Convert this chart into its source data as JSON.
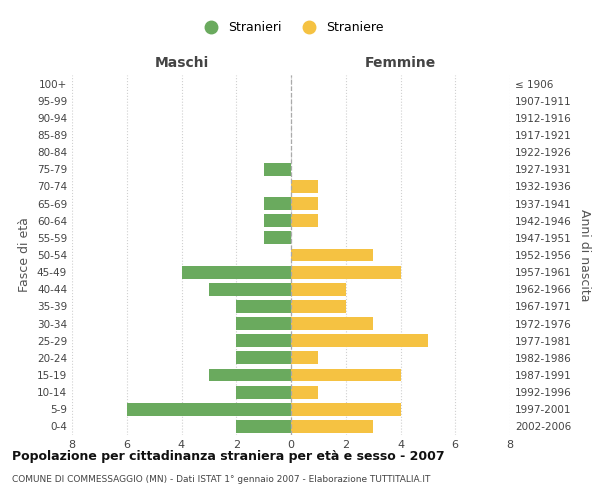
{
  "age_groups": [
    "100+",
    "95-99",
    "90-94",
    "85-89",
    "80-84",
    "75-79",
    "70-74",
    "65-69",
    "60-64",
    "55-59",
    "50-54",
    "45-49",
    "40-44",
    "35-39",
    "30-34",
    "25-29",
    "20-24",
    "15-19",
    "10-14",
    "5-9",
    "0-4"
  ],
  "birth_years": [
    "≤ 1906",
    "1907-1911",
    "1912-1916",
    "1917-1921",
    "1922-1926",
    "1927-1931",
    "1932-1936",
    "1937-1941",
    "1942-1946",
    "1947-1951",
    "1952-1956",
    "1957-1961",
    "1962-1966",
    "1967-1971",
    "1972-1976",
    "1977-1981",
    "1982-1986",
    "1987-1991",
    "1992-1996",
    "1997-2001",
    "2002-2006"
  ],
  "males": [
    0,
    0,
    0,
    0,
    0,
    1,
    0,
    1,
    1,
    1,
    0,
    4,
    3,
    2,
    2,
    2,
    2,
    3,
    2,
    6,
    2
  ],
  "females": [
    0,
    0,
    0,
    0,
    0,
    0,
    1,
    1,
    1,
    0,
    3,
    4,
    2,
    2,
    3,
    5,
    1,
    4,
    1,
    4,
    3
  ],
  "male_color": "#6aaa5e",
  "female_color": "#f5c242",
  "title": "Popolazione per cittadinanza straniera per età e sesso - 2007",
  "subtitle": "COMUNE DI COMMESSAGGIO (MN) - Dati ISTAT 1° gennaio 2007 - Elaborazione TUTTITALIA.IT",
  "xlabel_left": "Maschi",
  "xlabel_right": "Femmine",
  "ylabel_left": "Fasce di età",
  "ylabel_right": "Anni di nascita",
  "legend_male": "Stranieri",
  "legend_female": "Straniere",
  "xlim": 8,
  "background_color": "#ffffff",
  "grid_color": "#d0d0d0",
  "bar_height": 0.75
}
